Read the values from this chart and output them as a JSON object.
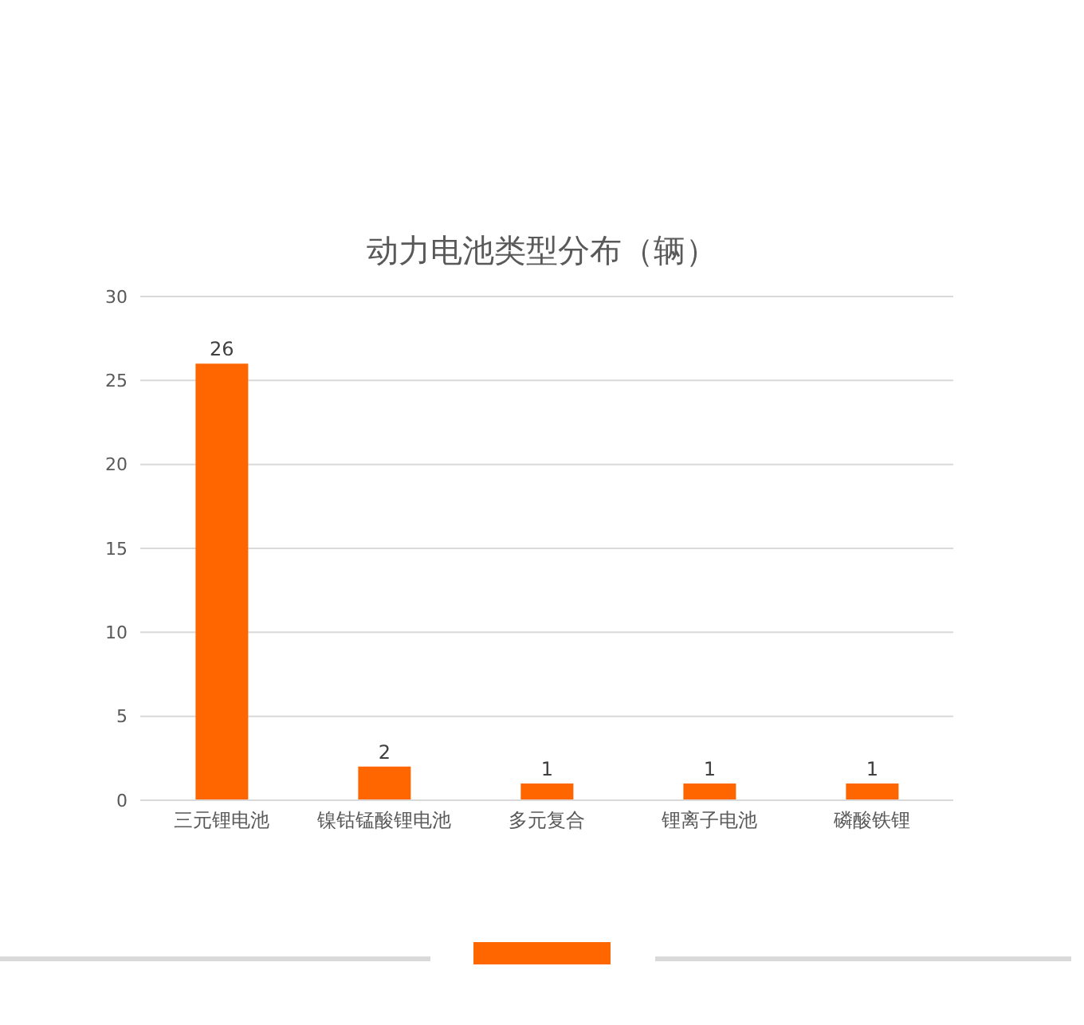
{
  "chart_data": {
    "type": "bar",
    "title": "动力电池类型分布（辆）",
    "categories": [
      "三元锂电池",
      "镍钴锰酸锂电池",
      "多元复合",
      "锂离子电池",
      "磷酸铁锂"
    ],
    "values": [
      26,
      2,
      1,
      1,
      1
    ],
    "color": "#ff6600",
    "ylim": [
      0,
      30
    ],
    "yticks": [
      0,
      5,
      10,
      15,
      20,
      25,
      30
    ],
    "grid": "y",
    "data_labels": true
  }
}
